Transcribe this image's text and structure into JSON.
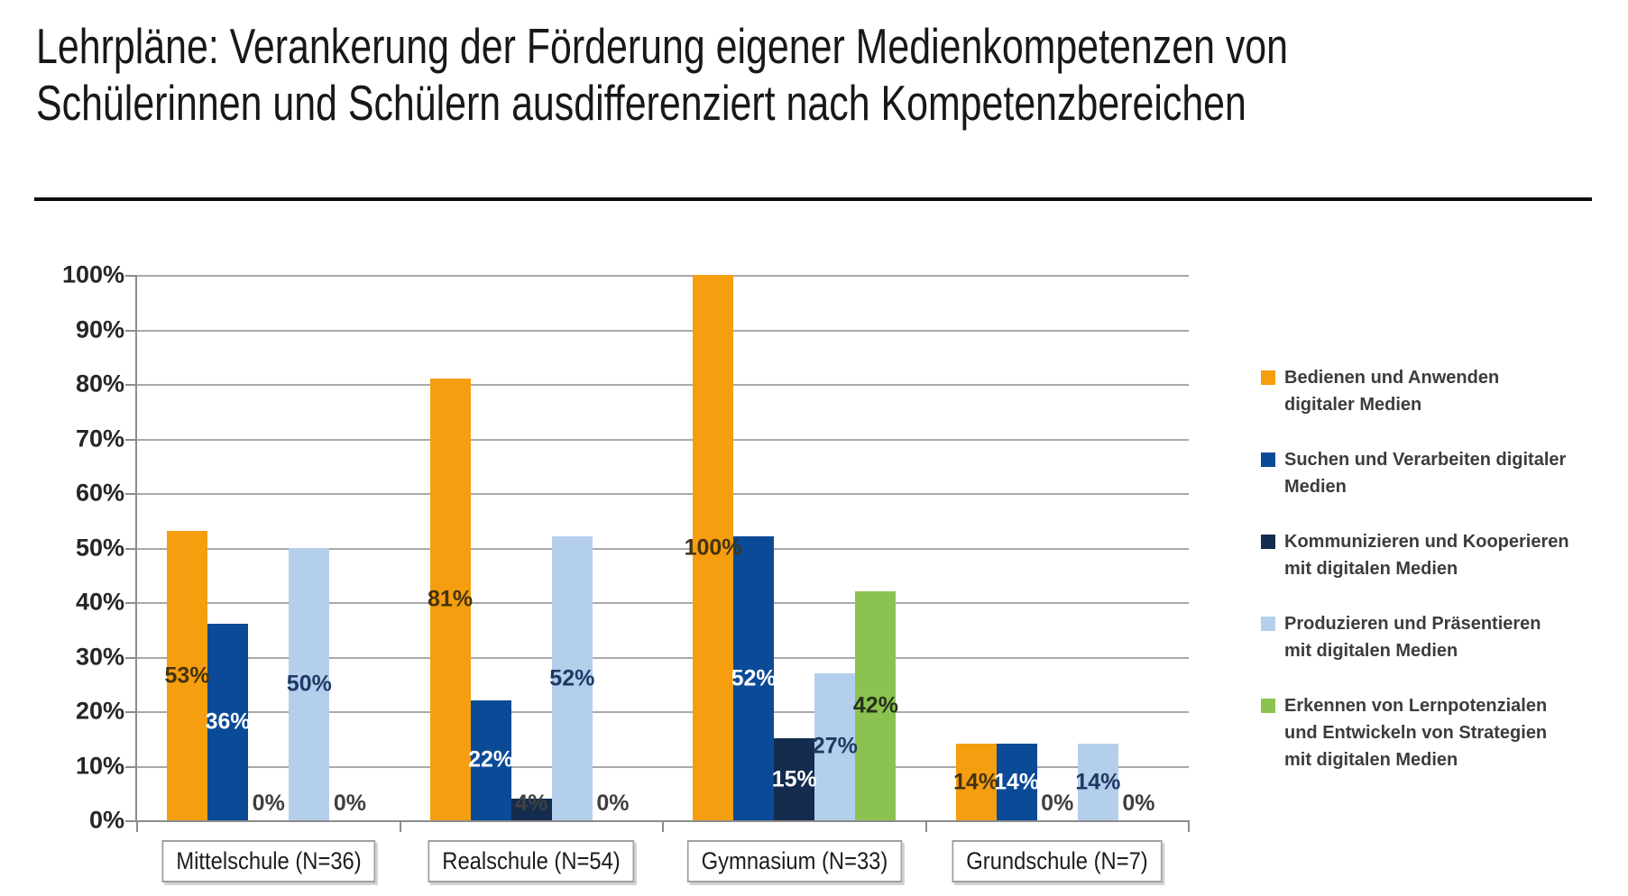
{
  "title": {
    "line1": "Lehrpläne: Verankerung der Förderung eigener Medienkompetenzen von",
    "line2": "Schülerinnen und Schülern ausdifferenziert nach Kompetenzbereichen"
  },
  "chart_data": {
    "type": "bar",
    "title": "Lehrpläne: Verankerung der Förderung eigener Medienkompetenzen von Schülerinnen und Schülern ausdifferenziert nach Kompetenzbereichen",
    "xlabel": "",
    "ylabel": "",
    "ylim": [
      0,
      100
    ],
    "grid": true,
    "legend_position": "right",
    "y_ticks": [
      "100%",
      "90%",
      "80%",
      "70%",
      "60%",
      "50%",
      "40%",
      "30%",
      "20%",
      "10%",
      "0%"
    ],
    "categories": [
      {
        "key": "mittelschule",
        "label": "Mittelschule (N=36)"
      },
      {
        "key": "realschule",
        "label": "Realschule (N=54)"
      },
      {
        "key": "gymnasium",
        "label": "Gymnasium (N=33)"
      },
      {
        "key": "grundschule",
        "label": "Grundschule (N=7)"
      }
    ],
    "series": [
      {
        "key": "bedienen",
        "name": "Bedienen und Anwenden digitaler Medien",
        "legend_lines": [
          "Bedienen und Anwenden",
          "digitaler Medien"
        ],
        "color": "#F59E0F",
        "label_color": "#463310",
        "values": [
          53,
          81,
          100,
          14
        ],
        "data_labels": [
          "53%",
          "81%",
          "100%",
          "14%"
        ]
      },
      {
        "key": "suchen",
        "name": "Suchen und Verarbeiten digitaler Medien",
        "legend_lines": [
          "Suchen und Verarbeiten digitaler",
          "Medien"
        ],
        "color": "#0B4A96",
        "label_color": "#FFFFFF",
        "values": [
          36,
          22,
          52,
          14
        ],
        "data_labels": [
          "36%",
          "22%",
          "52%",
          "14%"
        ]
      },
      {
        "key": "kommunizieren",
        "name": "Kommunizieren und Kooperieren mit digitalen Medien",
        "legend_lines": [
          "Kommunizieren und Kooperieren",
          "mit digitalen Medien"
        ],
        "color": "#142C4E",
        "label_color": "#FFFFFF",
        "values": [
          0,
          4,
          15,
          0
        ],
        "data_labels": [
          "0%",
          "4%",
          "15%",
          "0%"
        ]
      },
      {
        "key": "produzieren",
        "name": "Produzieren und Präsentieren mit digitalen Medien",
        "legend_lines": [
          "Produzieren und Präsentieren",
          "mit digitalen Medien"
        ],
        "color": "#B4CFEC",
        "label_color": "#1F3864",
        "values": [
          50,
          52,
          27,
          14
        ],
        "data_labels": [
          "50%",
          "52%",
          "27%",
          "14%"
        ]
      },
      {
        "key": "erkennen",
        "name": "Erkennen von Lernpotenzialen und Entwickeln von Strategien mit digitalen Medien",
        "legend_lines": [
          "Erkennen von Lernpotenzialen",
          "und Entwickeln von Strategien",
          "mit digitalen Medien"
        ],
        "color": "#8CC350",
        "label_color": "#26321B",
        "values": [
          0,
          0,
          42,
          0
        ],
        "data_labels": [
          "0%",
          "0%",
          "42%",
          "0%"
        ]
      }
    ],
    "zero_label_color": "#404040",
    "palette": {
      "gridline": "#A9A9A9",
      "axis": "#8C8C8C",
      "divider": "#0D0D0D",
      "title_text": "#181818",
      "ylabel_text": "#262626",
      "legend_text": "#3C3C3C",
      "category_border": "#A0A0A0",
      "background": "#FFFFFF"
    }
  }
}
